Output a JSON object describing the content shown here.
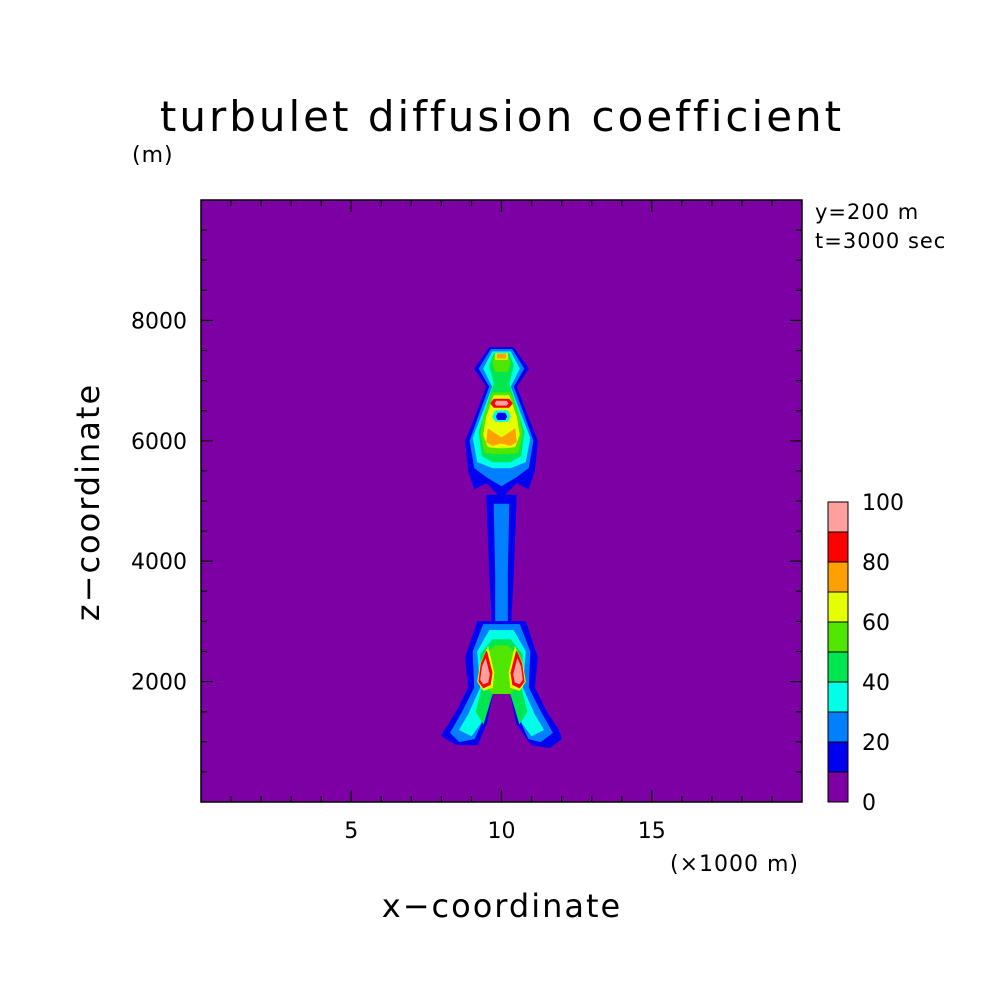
{
  "chart_data": {
    "type": "contour",
    "title": "turbulet diffusion coefficient",
    "xlabel": "x−coordinate",
    "ylabel": "z−coordinate",
    "x_unit": "(×1000 m)",
    "y_unit": "(m)",
    "annotations": [
      "y=200 m",
      "t=3000 sec"
    ],
    "xlim": [
      0,
      20
    ],
    "ylim": [
      0,
      10000
    ],
    "x_ticks": [
      5,
      10,
      15
    ],
    "y_ticks": [
      2000,
      4000,
      6000,
      8000
    ],
    "x_tick_labels": [
      "5",
      "10",
      "15"
    ],
    "y_tick_labels": [
      "2000",
      "4000",
      "6000",
      "8000"
    ],
    "grid": false,
    "colorbar": {
      "levels": [
        0,
        10,
        20,
        30,
        40,
        50,
        60,
        70,
        80,
        90,
        100
      ],
      "colors": [
        "#7c00a4",
        "#0000f0",
        "#0080ff",
        "#00ffe6",
        "#00e650",
        "#50e600",
        "#e6ff00",
        "#ffa000",
        "#ff0000",
        "#ffa0a0"
      ],
      "tick_labels": [
        "0",
        "20",
        "40",
        "60",
        "80",
        "100"
      ]
    },
    "background_value_color": "#7c00a4",
    "regions": [
      {
        "name": "plume-stem",
        "level": 1,
        "points": [
          [
            9.5,
            5100
          ],
          [
            10.5,
            5100
          ],
          [
            10.4,
            3800
          ],
          [
            10.3,
            2800
          ],
          [
            9.7,
            2800
          ],
          [
            9.6,
            3800
          ]
        ]
      },
      {
        "name": "plume-stem-inner",
        "level": 2,
        "points": [
          [
            9.75,
            4950
          ],
          [
            10.25,
            4950
          ],
          [
            10.2,
            3800
          ],
          [
            10.2,
            2800
          ],
          [
            9.8,
            2800
          ],
          [
            9.8,
            3800
          ]
        ]
      },
      {
        "name": "base-outer",
        "level": 1,
        "points": [
          [
            9.2,
            3000
          ],
          [
            10.8,
            3000
          ],
          [
            11.2,
            2400
          ],
          [
            11.1,
            1900
          ],
          [
            11.5,
            1500
          ],
          [
            11.9,
            1200
          ],
          [
            12.0,
            1050
          ],
          [
            11.6,
            900
          ],
          [
            11.0,
            950
          ],
          [
            10.5,
            1300
          ],
          [
            10.3,
            1800
          ],
          [
            9.7,
            1800
          ],
          [
            9.5,
            1300
          ],
          [
            9.2,
            950
          ],
          [
            8.5,
            950
          ],
          [
            8.0,
            1100
          ],
          [
            8.5,
            1500
          ],
          [
            8.9,
            1900
          ],
          [
            8.8,
            2400
          ]
        ]
      },
      {
        "name": "base-mid",
        "level": 2,
        "points": [
          [
            9.4,
            2950
          ],
          [
            10.6,
            2950
          ],
          [
            10.95,
            2500
          ],
          [
            10.9,
            1900
          ],
          [
            11.3,
            1500
          ],
          [
            11.7,
            1150
          ],
          [
            11.3,
            1000
          ],
          [
            10.9,
            1050
          ],
          [
            10.5,
            1500
          ],
          [
            10.3,
            1850
          ],
          [
            9.7,
            1850
          ],
          [
            9.5,
            1500
          ],
          [
            9.1,
            1050
          ],
          [
            8.6,
            1000
          ],
          [
            8.3,
            1150
          ],
          [
            8.7,
            1500
          ],
          [
            9.1,
            1900
          ],
          [
            9.05,
            2500
          ]
        ]
      },
      {
        "name": "base-cyan",
        "level": 3,
        "points": [
          [
            9.6,
            2850
          ],
          [
            10.4,
            2850
          ],
          [
            10.8,
            2500
          ],
          [
            10.7,
            1900
          ],
          [
            11.1,
            1450
          ],
          [
            11.4,
            1200
          ],
          [
            11.0,
            1100
          ],
          [
            10.7,
            1300
          ],
          [
            10.3,
            1800
          ],
          [
            9.7,
            1800
          ],
          [
            9.3,
            1300
          ],
          [
            9.0,
            1100
          ],
          [
            8.6,
            1200
          ],
          [
            8.9,
            1450
          ],
          [
            9.3,
            1900
          ],
          [
            9.2,
            2500
          ]
        ]
      },
      {
        "name": "base-green",
        "level": 4,
        "points": [
          [
            9.7,
            2700
          ],
          [
            10.3,
            2700
          ],
          [
            10.7,
            2450
          ],
          [
            10.65,
            1900
          ],
          [
            10.85,
            1500
          ],
          [
            10.6,
            1300
          ],
          [
            10.3,
            1800
          ],
          [
            9.7,
            1800
          ],
          [
            9.4,
            1300
          ],
          [
            9.15,
            1500
          ],
          [
            9.35,
            1900
          ],
          [
            9.3,
            2450
          ]
        ]
      },
      {
        "name": "base-lightgreen",
        "level": 5,
        "points": [
          [
            9.8,
            2600
          ],
          [
            10.2,
            2600
          ],
          [
            10.6,
            2400
          ],
          [
            10.55,
            1950
          ],
          [
            10.3,
            1800
          ],
          [
            9.7,
            1800
          ],
          [
            9.45,
            1950
          ],
          [
            9.4,
            2400
          ]
        ]
      },
      {
        "name": "left-core-yellow",
        "level": 6,
        "points": [
          [
            9.55,
            2580
          ],
          [
            9.75,
            2150
          ],
          [
            9.7,
            1900
          ],
          [
            9.4,
            1850
          ],
          [
            9.2,
            2000
          ],
          [
            9.3,
            2300
          ]
        ]
      },
      {
        "name": "left-core-red",
        "level": 8,
        "points": [
          [
            9.5,
            2500
          ],
          [
            9.68,
            2150
          ],
          [
            9.62,
            1950
          ],
          [
            9.4,
            1900
          ],
          [
            9.25,
            2000
          ],
          [
            9.33,
            2300
          ]
        ]
      },
      {
        "name": "left-core-white",
        "level": 9,
        "points": [
          [
            9.47,
            2380
          ],
          [
            9.6,
            2120
          ],
          [
            9.55,
            1990
          ],
          [
            9.4,
            1960
          ],
          [
            9.3,
            2030
          ],
          [
            9.36,
            2250
          ]
        ]
      },
      {
        "name": "right-core-yellow",
        "level": 6,
        "points": [
          [
            10.45,
            2580
          ],
          [
            10.25,
            2150
          ],
          [
            10.3,
            1900
          ],
          [
            10.6,
            1850
          ],
          [
            10.8,
            2000
          ],
          [
            10.7,
            2300
          ]
        ]
      },
      {
        "name": "right-core-red",
        "level": 8,
        "points": [
          [
            10.5,
            2500
          ],
          [
            10.32,
            2150
          ],
          [
            10.38,
            1950
          ],
          [
            10.6,
            1900
          ],
          [
            10.75,
            2000
          ],
          [
            10.67,
            2300
          ]
        ]
      },
      {
        "name": "right-core-white",
        "level": 9,
        "points": [
          [
            10.53,
            2380
          ],
          [
            10.4,
            2120
          ],
          [
            10.45,
            1990
          ],
          [
            10.6,
            1960
          ],
          [
            10.7,
            2030
          ],
          [
            10.64,
            2250
          ]
        ]
      },
      {
        "name": "head-outer",
        "level": 1,
        "points": [
          [
            9.6,
            7550
          ],
          [
            10.4,
            7550
          ],
          [
            10.9,
            7200
          ],
          [
            10.5,
            6900
          ],
          [
            10.8,
            6500
          ],
          [
            11.2,
            6000
          ],
          [
            11.1,
            5500
          ],
          [
            10.9,
            5200
          ],
          [
            10.5,
            5300
          ],
          [
            10.1,
            5100
          ],
          [
            9.9,
            5100
          ],
          [
            9.5,
            5300
          ],
          [
            9.1,
            5200
          ],
          [
            8.9,
            5500
          ],
          [
            8.8,
            6000
          ],
          [
            9.2,
            6500
          ],
          [
            9.5,
            6900
          ],
          [
            9.1,
            7200
          ]
        ]
      },
      {
        "name": "head-mid",
        "level": 2,
        "points": [
          [
            9.65,
            7520
          ],
          [
            10.35,
            7520
          ],
          [
            10.75,
            7200
          ],
          [
            10.4,
            6900
          ],
          [
            10.7,
            6500
          ],
          [
            11.05,
            6000
          ],
          [
            10.9,
            5550
          ],
          [
            10.5,
            5400
          ],
          [
            10.0,
            5250
          ],
          [
            9.5,
            5400
          ],
          [
            9.1,
            5550
          ],
          [
            8.95,
            6000
          ],
          [
            9.3,
            6500
          ],
          [
            9.6,
            6900
          ],
          [
            9.25,
            7200
          ]
        ]
      },
      {
        "name": "head-cyan",
        "level": 3,
        "points": [
          [
            9.7,
            7480
          ],
          [
            10.3,
            7480
          ],
          [
            10.6,
            7200
          ],
          [
            10.3,
            6900
          ],
          [
            10.6,
            6500
          ],
          [
            10.95,
            6050
          ],
          [
            10.8,
            5650
          ],
          [
            10.3,
            5550
          ],
          [
            9.7,
            5550
          ],
          [
            9.2,
            5650
          ],
          [
            9.05,
            6050
          ],
          [
            9.4,
            6500
          ],
          [
            9.7,
            6900
          ],
          [
            9.4,
            7200
          ]
        ]
      },
      {
        "name": "head-green",
        "level": 4,
        "points": [
          [
            9.75,
            7450
          ],
          [
            10.25,
            7450
          ],
          [
            10.4,
            7250
          ],
          [
            10.25,
            6950
          ],
          [
            10.5,
            6550
          ],
          [
            10.75,
            6150
          ],
          [
            10.65,
            5750
          ],
          [
            10.3,
            5650
          ],
          [
            9.7,
            5650
          ],
          [
            9.35,
            5750
          ],
          [
            9.25,
            6150
          ],
          [
            9.5,
            6550
          ],
          [
            9.75,
            6950
          ],
          [
            9.6,
            7250
          ]
        ]
      },
      {
        "name": "head-lightgreen",
        "level": 5,
        "points": [
          [
            9.8,
            7450
          ],
          [
            10.2,
            7450
          ],
          [
            10.3,
            7300
          ],
          [
            10.2,
            7150
          ],
          [
            9.8,
            7150
          ],
          [
            9.7,
            7300
          ]
        ]
      },
      {
        "name": "head-lightgreen-mid",
        "level": 5,
        "points": [
          [
            9.7,
            6800
          ],
          [
            10.3,
            6800
          ],
          [
            10.6,
            6400
          ],
          [
            10.7,
            6100
          ],
          [
            10.55,
            5800
          ],
          [
            10.2,
            5780
          ],
          [
            9.8,
            5780
          ],
          [
            9.45,
            5800
          ],
          [
            9.3,
            6100
          ],
          [
            9.4,
            6400
          ]
        ]
      },
      {
        "name": "head-yellow-top",
        "level": 6,
        "points": [
          [
            9.8,
            7450
          ],
          [
            10.2,
            7450
          ],
          [
            10.2,
            7350
          ],
          [
            9.8,
            7350
          ]
        ]
      },
      {
        "name": "head-orange-top",
        "level": 7,
        "points": [
          [
            9.85,
            7440
          ],
          [
            10.15,
            7440
          ],
          [
            10.15,
            7370
          ],
          [
            9.85,
            7370
          ]
        ]
      },
      {
        "name": "head-yellow-mid",
        "level": 6,
        "points": [
          [
            9.75,
            6750
          ],
          [
            10.25,
            6750
          ],
          [
            10.5,
            6400
          ],
          [
            10.6,
            6100
          ],
          [
            10.45,
            5900
          ],
          [
            10.1,
            5880
          ],
          [
            9.9,
            5880
          ],
          [
            9.55,
            5900
          ],
          [
            9.4,
            6100
          ],
          [
            9.5,
            6400
          ]
        ]
      },
      {
        "name": "head-orange-mid",
        "level": 7,
        "points": [
          [
            9.55,
            6200
          ],
          [
            10.0,
            6050
          ],
          [
            10.45,
            6200
          ],
          [
            10.5,
            5980
          ],
          [
            10.3,
            5920
          ],
          [
            10.0,
            5960
          ],
          [
            9.7,
            5920
          ],
          [
            9.5,
            5980
          ]
        ]
      },
      {
        "name": "head-red-ring",
        "level": 8,
        "points": [
          [
            9.75,
            6690
          ],
          [
            10.25,
            6690
          ],
          [
            10.35,
            6620
          ],
          [
            10.25,
            6560
          ],
          [
            9.75,
            6560
          ],
          [
            9.65,
            6620
          ]
        ]
      },
      {
        "name": "head-white-ring",
        "level": 9,
        "points": [
          [
            9.83,
            6660
          ],
          [
            10.17,
            6660
          ],
          [
            10.22,
            6620
          ],
          [
            10.17,
            6590
          ],
          [
            9.83,
            6590
          ],
          [
            9.78,
            6620
          ]
        ]
      },
      {
        "name": "head-hole-cyan",
        "level": 3,
        "points": [
          [
            9.8,
            6500
          ],
          [
            10.2,
            6500
          ],
          [
            10.3,
            6400
          ],
          [
            10.2,
            6320
          ],
          [
            9.8,
            6320
          ],
          [
            9.7,
            6400
          ]
        ]
      },
      {
        "name": "head-hole-blue",
        "level": 1,
        "points": [
          [
            9.88,
            6460
          ],
          [
            10.12,
            6460
          ],
          [
            10.18,
            6400
          ],
          [
            10.12,
            6350
          ],
          [
            9.88,
            6350
          ],
          [
            9.82,
            6400
          ]
        ]
      }
    ]
  }
}
